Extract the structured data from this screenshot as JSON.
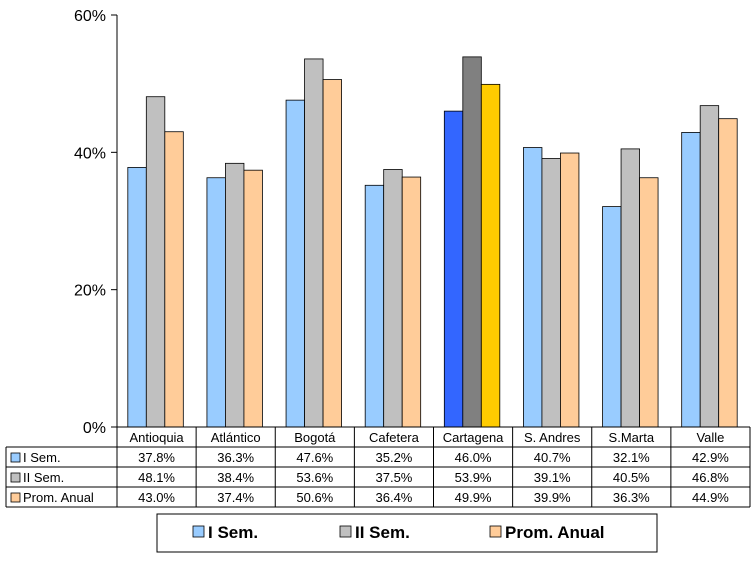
{
  "chart_data": {
    "type": "bar",
    "categories": [
      "Antioquia",
      "Atlántico",
      "Bogotá",
      "Cafetera",
      "Cartagena",
      "S. Andres",
      "S.Marta",
      "Valle"
    ],
    "series": [
      {
        "name": "I Sem.",
        "values": [
          37.8,
          36.3,
          47.6,
          35.2,
          46.0,
          40.7,
          32.1,
          42.9
        ],
        "labels": [
          "37.8%",
          "36.3%",
          "47.6%",
          "35.2%",
          "46.0%",
          "40.7%",
          "32.1%",
          "42.9%"
        ],
        "color": "#99ccff",
        "highlight_color": "#3366ff"
      },
      {
        "name": "II Sem.",
        "values": [
          48.1,
          38.4,
          53.6,
          37.5,
          53.9,
          39.1,
          40.5,
          46.8
        ],
        "labels": [
          "48.1%",
          "38.4%",
          "53.6%",
          "37.5%",
          "53.9%",
          "39.1%",
          "40.5%",
          "46.8%"
        ],
        "color": "#c0c0c0",
        "highlight_color": "#808080"
      },
      {
        "name": "Prom. Anual",
        "values": [
          43.0,
          37.4,
          50.6,
          36.4,
          49.9,
          39.9,
          36.3,
          44.9
        ],
        "labels": [
          "43.0%",
          "37.4%",
          "50.6%",
          "36.4%",
          "49.9%",
          "39.9%",
          "36.3%",
          "44.9%"
        ],
        "color": "#ffcc99",
        "highlight_color": "#ffcc00"
      }
    ],
    "highlight_category": "Cartagena",
    "ylim": [
      0,
      60
    ],
    "yticks": [
      0,
      20,
      40,
      60
    ],
    "ytick_labels": [
      "0%",
      "20%",
      "40%",
      "60%"
    ],
    "grid": false,
    "data_table": true,
    "legend_position": "bottom",
    "title": "",
    "xlabel": "",
    "ylabel": ""
  }
}
